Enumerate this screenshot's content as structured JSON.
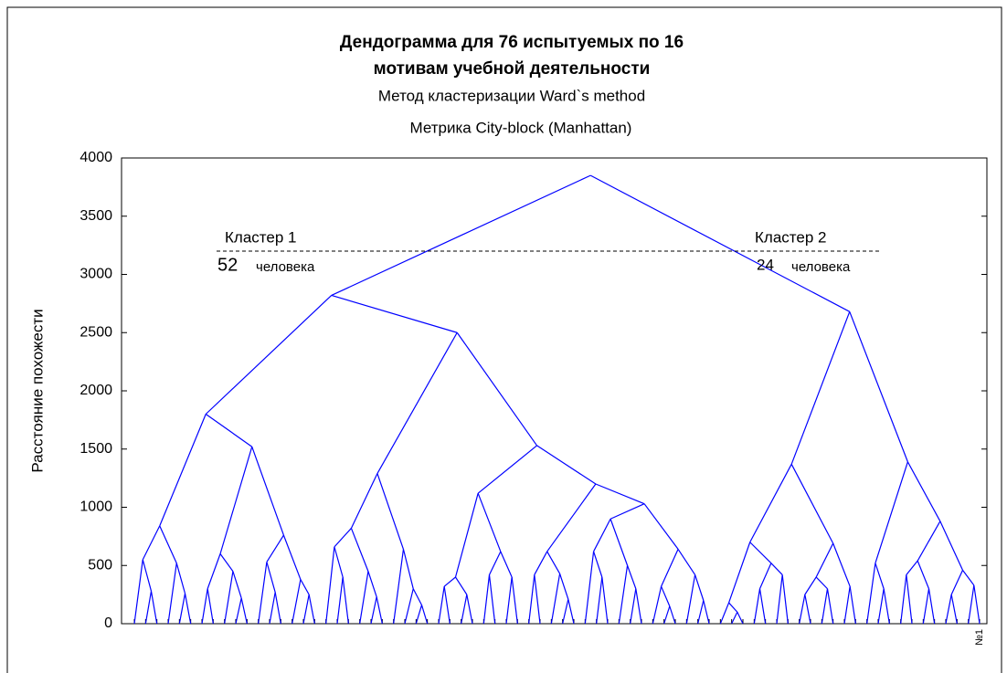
{
  "chart_data": {
    "type": "dendrogram",
    "title": "Дендограмма для 76 испытуемых по 16",
    "title_line2": "мотивам учебной деятельности",
    "subtitle": "Метод кластеризации Ward`s method",
    "subtitle2": "Метрика City-block (Manhattan)",
    "y_label": "Расстояние похожести",
    "ylim": [
      0,
      4000
    ],
    "yticks": [
      0,
      500,
      1000,
      1500,
      2000,
      2500,
      3000,
      3500,
      4000
    ],
    "color": "#0000ff",
    "cut_height": 3200,
    "annotations": [
      {
        "title": "Кластер 1",
        "count": "52",
        "unit": "человека"
      },
      {
        "title": "Кластер 2",
        "count": "24",
        "unit": "человека"
      }
    ],
    "categories": [
      null,
      null,
      null,
      null,
      null,
      null,
      null,
      null,
      null,
      null,
      null,
      null,
      null,
      null,
      null,
      null,
      null,
      null,
      null,
      null,
      null,
      null,
      null,
      null,
      null,
      null,
      null,
      null,
      null,
      null,
      null,
      null,
      null,
      null,
      null,
      null,
      null,
      null,
      null,
      null,
      null,
      null,
      null,
      null,
      null,
      null,
      null,
      null,
      null,
      null,
      null,
      null,
      null,
      null,
      null,
      null,
      null,
      null,
      null,
      null,
      null,
      null,
      null,
      null,
      null,
      null,
      null,
      null,
      null,
      null,
      null,
      null,
      null,
      null,
      null,
      "№1"
    ],
    "tree": {
      "h": 3850,
      "c": [
        {
          "h": 2820,
          "c": [
            {
              "h": 1800,
              "c": [
                {
                  "h": 840,
                  "c": [
                    {
                      "h": 550,
                      "c": [
                        0,
                        {
                          "h": 280,
                          "c": [
                            0,
                            0
                          ]
                        }
                      ]
                    },
                    {
                      "h": 520,
                      "c": [
                        0,
                        {
                          "h": 260,
                          "c": [
                            0,
                            0
                          ]
                        }
                      ]
                    }
                  ]
                },
                {
                  "h": 1520,
                  "c": [
                    {
                      "h": 600,
                      "c": [
                        {
                          "h": 300,
                          "c": [
                            0,
                            0
                          ]
                        },
                        {
                          "h": 450,
                          "c": [
                            0,
                            {
                              "h": 220,
                              "c": [
                                0,
                                0
                              ]
                            }
                          ]
                        }
                      ]
                    },
                    {
                      "h": 760,
                      "c": [
                        {
                          "h": 530,
                          "c": [
                            0,
                            {
                              "h": 270,
                              "c": [
                                0,
                                0
                              ]
                            }
                          ]
                        },
                        {
                          "h": 380,
                          "c": [
                            0,
                            {
                              "h": 250,
                              "c": [
                                0,
                                0
                              ]
                            }
                          ]
                        }
                      ]
                    }
                  ]
                }
              ]
            },
            {
              "h": 2500,
              "c": [
                {
                  "h": 1290,
                  "c": [
                    {
                      "h": 820,
                      "c": [
                        {
                          "h": 660,
                          "c": [
                            0,
                            {
                              "h": 400,
                              "c": [
                                0,
                                0
                              ]
                            }
                          ]
                        },
                        {
                          "h": 450,
                          "c": [
                            0,
                            {
                              "h": 230,
                              "c": [
                                0,
                                0
                              ]
                            }
                          ]
                        }
                      ]
                    },
                    {
                      "h": 640,
                      "c": [
                        0,
                        {
                          "h": 300,
                          "c": [
                            0,
                            {
                              "h": 160,
                              "c": [
                                0,
                                0
                              ]
                            }
                          ]
                        }
                      ]
                    }
                  ]
                },
                {
                  "h": 1530,
                  "c": [
                    {
                      "h": 1120,
                      "c": [
                        {
                          "h": 400,
                          "c": [
                            {
                              "h": 320,
                              "c": [
                                0,
                                0
                              ]
                            },
                            {
                              "h": 250,
                              "c": [
                                0,
                                0
                              ]
                            }
                          ]
                        },
                        {
                          "h": 620,
                          "c": [
                            {
                              "h": 420,
                              "c": [
                                0,
                                0
                              ]
                            },
                            {
                              "h": 400,
                              "c": [
                                0,
                                0
                              ]
                            }
                          ]
                        }
                      ]
                    },
                    {
                      "h": 1200,
                      "c": [
                        {
                          "h": 620,
                          "c": [
                            {
                              "h": 420,
                              "c": [
                                0,
                                0
                              ]
                            },
                            {
                              "h": 430,
                              "c": [
                                0,
                                {
                                  "h": 210,
                                  "c": [
                                    0,
                                    0
                                  ]
                                }
                              ]
                            }
                          ]
                        },
                        {
                          "h": 1030,
                          "c": [
                            {
                              "h": 900,
                              "c": [
                                {
                                  "h": 620,
                                  "c": [
                                    0,
                                    {
                                      "h": 400,
                                      "c": [
                                        0,
                                        0
                                      ]
                                    }
                                  ]
                                },
                                {
                                  "h": 500,
                                  "c": [
                                    0,
                                    {
                                      "h": 300,
                                      "c": [
                                        0,
                                        0
                                      ]
                                    }
                                  ]
                                }
                              ]
                            },
                            {
                              "h": 640,
                              "c": [
                                {
                                  "h": 320,
                                  "c": [
                                    0,
                                    {
                                      "h": 150,
                                      "c": [
                                        0,
                                        0
                                      ]
                                    }
                                  ]
                                },
                                {
                                  "h": 420,
                                  "c": [
                                    0,
                                    {
                                      "h": 200,
                                      "c": [
                                        0,
                                        0
                                      ]
                                    }
                                  ]
                                }
                              ]
                            }
                          ]
                        }
                      ]
                    }
                  ]
                }
              ]
            }
          ]
        },
        {
          "h": 2680,
          "c": [
            {
              "h": 1370,
              "c": [
                {
                  "h": 700,
                  "c": [
                    {
                      "h": 180,
                      "c": [
                        0,
                        {
                          "h": 100,
                          "c": [
                            0,
                            0
                          ]
                        }
                      ]
                    },
                    {
                      "h": 520,
                      "c": [
                        {
                          "h": 300,
                          "c": [
                            0,
                            0
                          ]
                        },
                        {
                          "h": 420,
                          "c": [
                            0,
                            0
                          ]
                        }
                      ]
                    }
                  ]
                },
                {
                  "h": 690,
                  "c": [
                    {
                      "h": 400,
                      "c": [
                        {
                          "h": 250,
                          "c": [
                            0,
                            0
                          ]
                        },
                        {
                          "h": 300,
                          "c": [
                            0,
                            0
                          ]
                        }
                      ]
                    },
                    {
                      "h": 320,
                      "c": [
                        0,
                        0
                      ]
                    }
                  ]
                }
              ]
            },
            {
              "h": 1390,
              "c": [
                {
                  "h": 520,
                  "c": [
                    0,
                    {
                      "h": 300,
                      "c": [
                        0,
                        0
                      ]
                    }
                  ]
                },
                {
                  "h": 880,
                  "c": [
                    {
                      "h": 540,
                      "c": [
                        {
                          "h": 420,
                          "c": [
                            0,
                            0
                          ]
                        },
                        {
                          "h": 300,
                          "c": [
                            0,
                            0
                          ]
                        }
                      ]
                    },
                    {
                      "h": 460,
                      "c": [
                        {
                          "h": 250,
                          "c": [
                            0,
                            0
                          ]
                        },
                        {
                          "h": 330,
                          "c": [
                            0,
                            0
                          ]
                        }
                      ]
                    }
                  ]
                }
              ]
            }
          ]
        }
      ]
    }
  }
}
